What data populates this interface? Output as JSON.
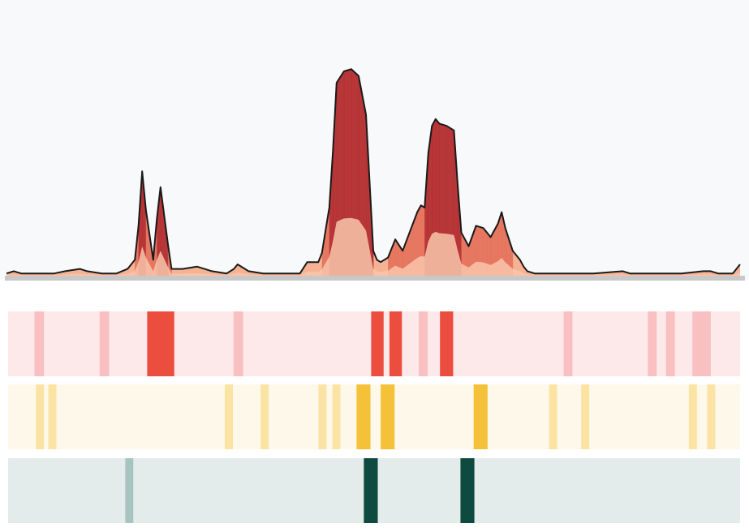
{
  "colors": {
    "plot_background": "#f7f9fb",
    "baseline": "#c8c8c8",
    "outline": "#1a1a1a",
    "peak_dark": "#b0282e",
    "peak_mid": "#e4705a",
    "peak_light": "#f6b394"
  },
  "chart_data": [
    {
      "type": "area",
      "title": "",
      "xlabel": "",
      "ylabel": "",
      "xlim": [
        0,
        1
      ],
      "ylim": [
        0,
        1
      ],
      "grid": false,
      "legend": "none",
      "x": [
        0.0,
        0.01,
        0.02,
        0.04,
        0.055,
        0.065,
        0.08,
        0.1,
        0.11,
        0.13,
        0.15,
        0.165,
        0.175,
        0.18,
        0.185,
        0.19,
        0.2,
        0.205,
        0.21,
        0.22,
        0.225,
        0.23,
        0.24,
        0.26,
        0.28,
        0.3,
        0.31,
        0.315,
        0.33,
        0.35,
        0.38,
        0.4,
        0.41,
        0.425,
        0.43,
        0.435,
        0.44,
        0.445,
        0.45,
        0.46,
        0.47,
        0.48,
        0.49,
        0.5,
        0.505,
        0.51,
        0.52,
        0.53,
        0.54,
        0.56,
        0.565,
        0.57,
        0.575,
        0.58,
        0.585,
        0.59,
        0.6,
        0.61,
        0.615,
        0.62,
        0.63,
        0.64,
        0.65,
        0.655,
        0.66,
        0.67,
        0.675,
        0.68,
        0.69,
        0.7,
        0.705,
        0.71,
        0.72,
        0.73,
        0.74,
        0.76,
        0.8,
        0.84,
        0.85,
        0.87,
        0.9,
        0.92,
        0.95,
        0.96,
        0.97,
        0.98,
        0.99,
        1.0
      ],
      "series": [
        {
          "values": [
            0.01,
            0.02,
            0.01,
            0.01,
            0.01,
            0.01,
            0.02,
            0.03,
            0.02,
            0.01,
            0.01,
            0.03,
            0.07,
            0.22,
            0.46,
            0.29,
            0.07,
            0.25,
            0.39,
            0.14,
            0.03,
            0.03,
            0.03,
            0.04,
            0.02,
            0.01,
            0.03,
            0.05,
            0.02,
            0.01,
            0.01,
            0.01,
            0.06,
            0.06,
            0.1,
            0.2,
            0.3,
            0.55,
            0.85,
            0.9,
            0.91,
            0.88,
            0.71,
            0.11,
            0.07,
            0.06,
            0.08,
            0.16,
            0.11,
            0.28,
            0.31,
            0.3,
            0.54,
            0.66,
            0.69,
            0.67,
            0.66,
            0.64,
            0.4,
            0.19,
            0.13,
            0.22,
            0.21,
            0.19,
            0.17,
            0.23,
            0.28,
            0.21,
            0.11,
            0.07,
            0.04,
            0.02,
            0.01,
            0.01,
            0.01,
            0.01,
            0.01,
            0.02,
            0.01,
            0.01,
            0.01,
            0.01,
            0.02,
            0.02,
            0.01,
            0.01,
            0.01,
            0.05
          ]
        }
      ]
    },
    {
      "type": "heatmap",
      "rows": [
        {
          "base_color": "#fde8ea",
          "marks": [
            {
              "x": 0.036,
              "w": 0.013,
              "color": "#f8c0c0"
            },
            {
              "x": 0.125,
              "w": 0.013,
              "color": "#f8c0c0"
            },
            {
              "x": 0.19,
              "w": 0.037,
              "color": "#eb4d3f"
            },
            {
              "x": 0.308,
              "w": 0.013,
              "color": "#f8c0c0"
            },
            {
              "x": 0.496,
              "w": 0.017,
              "color": "#eb4d3f"
            },
            {
              "x": 0.521,
              "w": 0.017,
              "color": "#eb4d3f"
            },
            {
              "x": 0.561,
              "w": 0.012,
              "color": "#f8c0c0"
            },
            {
              "x": 0.59,
              "w": 0.018,
              "color": "#eb4d3f"
            },
            {
              "x": 0.759,
              "w": 0.012,
              "color": "#f8c0c0"
            },
            {
              "x": 0.874,
              "w": 0.012,
              "color": "#f8c0c0"
            },
            {
              "x": 0.899,
              "w": 0.012,
              "color": "#f8c0c0"
            },
            {
              "x": 0.935,
              "w": 0.025,
              "color": "#f8c0c0"
            }
          ]
        },
        {
          "base_color": "#fdf8e9",
          "marks": [
            {
              "x": 0.038,
              "w": 0.011,
              "color": "#fbe3a3"
            },
            {
              "x": 0.055,
              "w": 0.011,
              "color": "#fbe3a3"
            },
            {
              "x": 0.296,
              "w": 0.011,
              "color": "#fbe3a3"
            },
            {
              "x": 0.345,
              "w": 0.011,
              "color": "#fbe3a3"
            },
            {
              "x": 0.424,
              "w": 0.011,
              "color": "#fbe3a3"
            },
            {
              "x": 0.443,
              "w": 0.011,
              "color": "#fbe3a3"
            },
            {
              "x": 0.476,
              "w": 0.019,
              "color": "#f4c138"
            },
            {
              "x": 0.509,
              "w": 0.019,
              "color": "#f4c138"
            },
            {
              "x": 0.636,
              "w": 0.019,
              "color": "#f4c138"
            },
            {
              "x": 0.739,
              "w": 0.011,
              "color": "#fbe3a3"
            },
            {
              "x": 0.783,
              "w": 0.011,
              "color": "#fbe3a3"
            },
            {
              "x": 0.93,
              "w": 0.011,
              "color": "#fbe3a3"
            },
            {
              "x": 0.955,
              "w": 0.011,
              "color": "#fbe3a3"
            }
          ]
        },
        {
          "base_color": "#e3eceb",
          "marks": [
            {
              "x": 0.16,
              "w": 0.011,
              "color": "#a8c4bf"
            },
            {
              "x": 0.486,
              "w": 0.019,
              "color": "#0e4a3f"
            },
            {
              "x": 0.618,
              "w": 0.019,
              "color": "#0e4a3f"
            }
          ]
        }
      ]
    }
  ]
}
